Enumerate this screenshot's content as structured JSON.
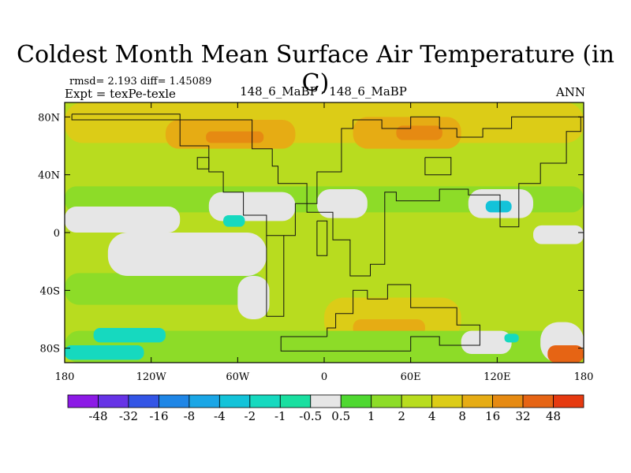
{
  "header": {
    "title": "Coldest Month Mean Surface Air Temperature (in C)",
    "stats": "rmsd= 2.193 diff= 1.45089",
    "expt": "Expt = texPe-texle",
    "center_label": "148_6_MaBP - 148_6_MaBP",
    "season": "ANN"
  },
  "chart_data": {
    "type": "heatmap",
    "title": "Coldest Month Mean Surface Air Temperature (in C)",
    "xlabel": "",
    "ylabel": "",
    "xlim": [
      -180,
      180
    ],
    "ylim": [
      -90,
      90
    ],
    "x_ticks": [
      {
        "value": -180,
        "label": "180"
      },
      {
        "value": -120,
        "label": "120W"
      },
      {
        "value": -60,
        "label": "60W"
      },
      {
        "value": 0,
        "label": "0"
      },
      {
        "value": 60,
        "label": "60E"
      },
      {
        "value": 120,
        "label": "120E"
      },
      {
        "value": 180,
        "label": "180"
      }
    ],
    "y_ticks": [
      {
        "value": 80,
        "label": "80N"
      },
      {
        "value": 40,
        "label": "40N"
      },
      {
        "value": 0,
        "label": "0"
      },
      {
        "value": -40,
        "label": "40S"
      },
      {
        "value": -80,
        "label": "80S"
      }
    ],
    "colorbar": {
      "levels": [
        "-48",
        "-32",
        "-16",
        "-8",
        "-4",
        "-2",
        "-1",
        "-0.5",
        "0.5",
        "1",
        "2",
        "4",
        "8",
        "16",
        "32",
        "48"
      ],
      "colors": [
        "#8c1ae6",
        "#6633e6",
        "#3355e6",
        "#1f86e6",
        "#1aa6e6",
        "#13c3d9",
        "#16d9bf",
        "#19dfa0",
        "#e6e6e6",
        "#4fd831",
        "#8ddc28",
        "#b8dc1f",
        "#dccc17",
        "#e6ac14",
        "#e68a12",
        "#e66414",
        "#e63a10"
      ]
    },
    "field_regions": [
      {
        "bin": 11,
        "lon": -180,
        "lat": 90,
        "lon2": 180,
        "lat2": -90
      },
      {
        "bin": 12,
        "lon": -180,
        "lat": 90,
        "lon2": 180,
        "lat2": 62
      },
      {
        "bin": 13,
        "lon": -110,
        "lat": 78,
        "lon2": -20,
        "lat2": 58
      },
      {
        "bin": 13,
        "lon": 20,
        "lat": 80,
        "lon2": 95,
        "lat2": 58
      },
      {
        "bin": 14,
        "lon": -82,
        "lat": 70,
        "lon2": -42,
        "lat2": 62
      },
      {
        "bin": 14,
        "lon": 50,
        "lat": 74,
        "lon2": 82,
        "lat2": 64
      },
      {
        "bin": 12,
        "lon": 0,
        "lat": -45,
        "lon2": 95,
        "lat2": -75
      },
      {
        "bin": 13,
        "lon": 20,
        "lat": -60,
        "lon2": 70,
        "lat2": -72
      },
      {
        "bin": 10,
        "lon": -180,
        "lat": 32,
        "lon2": 180,
        "lat2": 14
      },
      {
        "bin": 10,
        "lon": -180,
        "lat": -28,
        "lon2": -40,
        "lat2": -50
      },
      {
        "bin": 10,
        "lon": -180,
        "lat": -68,
        "lon2": 180,
        "lat2": -90
      },
      {
        "bin": 8,
        "lon": -180,
        "lat": 18,
        "lon2": -100,
        "lat2": 0
      },
      {
        "bin": 8,
        "lon": -150,
        "lat": 0,
        "lon2": -40,
        "lat2": -30
      },
      {
        "bin": 8,
        "lon": -60,
        "lat": -30,
        "lon2": -38,
        "lat2": -60
      },
      {
        "bin": 8,
        "lon": -80,
        "lat": 28,
        "lon2": -20,
        "lat2": 8
      },
      {
        "bin": 8,
        "lon": -5,
        "lat": 30,
        "lon2": 30,
        "lat2": 10
      },
      {
        "bin": 8,
        "lon": 100,
        "lat": 30,
        "lon2": 145,
        "lat2": 10
      },
      {
        "bin": 8,
        "lon": 145,
        "lat": 5,
        "lon2": 180,
        "lat2": -8
      },
      {
        "bin": 8,
        "lon": 95,
        "lat": -68,
        "lon2": 130,
        "lat2": -84
      },
      {
        "bin": 8,
        "lon": 150,
        "lat": -62,
        "lon2": 180,
        "lat2": -90
      },
      {
        "bin": 6,
        "lon": -70,
        "lat": 12,
        "lon2": -55,
        "lat2": 4
      },
      {
        "bin": 5,
        "lon": 112,
        "lat": 22,
        "lon2": 130,
        "lat2": 14
      },
      {
        "bin": 6,
        "lon": -160,
        "lat": -66,
        "lon2": -110,
        "lat2": -76
      },
      {
        "bin": 6,
        "lon": -180,
        "lat": -78,
        "lon2": -125,
        "lat2": -88
      },
      {
        "bin": 6,
        "lon": 125,
        "lat": -70,
        "lon2": 135,
        "lat2": -76
      },
      {
        "bin": 15,
        "lon": 155,
        "lat": -78,
        "lon2": 180,
        "lat2": -90
      }
    ],
    "land_outline": [
      [
        [
          -175,
          82
        ],
        [
          -100,
          82
        ],
        [
          -100,
          60
        ],
        [
          -80,
          60
        ],
        [
          -80,
          42
        ],
        [
          -70,
          42
        ],
        [
          -70,
          28
        ],
        [
          -56,
          28
        ],
        [
          -56,
          12
        ],
        [
          -40,
          12
        ],
        [
          -40,
          -2
        ],
        [
          -20,
          -2
        ],
        [
          -20,
          20
        ],
        [
          -5,
          20
        ],
        [
          -5,
          42
        ],
        [
          12,
          42
        ],
        [
          12,
          72
        ],
        [
          20,
          72
        ],
        [
          20,
          78
        ],
        [
          40,
          78
        ],
        [
          40,
          72
        ],
        [
          60,
          72
        ],
        [
          60,
          80
        ],
        [
          80,
          80
        ],
        [
          80,
          72
        ],
        [
          92,
          72
        ],
        [
          92,
          66
        ],
        [
          110,
          66
        ],
        [
          110,
          72
        ],
        [
          130,
          72
        ],
        [
          130,
          80
        ],
        [
          178,
          80
        ],
        [
          178,
          70
        ],
        [
          168,
          70
        ],
        [
          168,
          48
        ],
        [
          150,
          48
        ],
        [
          150,
          34
        ],
        [
          135,
          34
        ],
        [
          135,
          4
        ],
        [
          122,
          4
        ],
        [
          122,
          26
        ],
        [
          100,
          26
        ],
        [
          100,
          30
        ],
        [
          80,
          30
        ],
        [
          80,
          22
        ],
        [
          50,
          22
        ],
        [
          50,
          28
        ],
        [
          42,
          28
        ],
        [
          42,
          -22
        ],
        [
          32,
          -22
        ],
        [
          32,
          -30
        ],
        [
          18,
          -30
        ],
        [
          18,
          -5
        ],
        [
          6,
          -5
        ],
        [
          6,
          14
        ],
        [
          -12,
          14
        ],
        [
          -12,
          34
        ],
        [
          -32,
          34
        ],
        [
          -32,
          46
        ],
        [
          -36,
          46
        ],
        [
          -36,
          58
        ],
        [
          -50,
          58
        ],
        [
          -50,
          78
        ],
        [
          -175,
          78
        ],
        [
          -175,
          82
        ]
      ],
      [
        [
          -40,
          -2
        ],
        [
          -40,
          -58
        ],
        [
          -28,
          -58
        ],
        [
          -28,
          -2
        ]
      ],
      [
        [
          2,
          -72
        ],
        [
          -30,
          -72
        ],
        [
          -30,
          -82
        ],
        [
          60,
          -82
        ],
        [
          60,
          -72
        ],
        [
          80,
          -72
        ],
        [
          80,
          -78
        ],
        [
          108,
          -78
        ],
        [
          108,
          -64
        ],
        [
          92,
          -64
        ],
        [
          92,
          -52
        ],
        [
          60,
          -52
        ],
        [
          60,
          -36
        ],
        [
          44,
          -36
        ],
        [
          44,
          -46
        ],
        [
          30,
          -46
        ],
        [
          30,
          -40
        ],
        [
          20,
          -40
        ],
        [
          20,
          -56
        ],
        [
          8,
          -56
        ],
        [
          8,
          -66
        ],
        [
          2,
          -66
        ],
        [
          2,
          -72
        ]
      ],
      [
        [
          -80,
          52
        ],
        [
          -80,
          44
        ],
        [
          -88,
          44
        ],
        [
          -88,
          52
        ],
        [
          -80,
          52
        ]
      ],
      [
        [
          70,
          52
        ],
        [
          70,
          40
        ],
        [
          88,
          40
        ],
        [
          88,
          52
        ],
        [
          70,
          52
        ]
      ],
      [
        [
          -5,
          8
        ],
        [
          -5,
          -16
        ],
        [
          2,
          -16
        ],
        [
          2,
          8
        ],
        [
          -5,
          8
        ]
      ]
    ]
  }
}
